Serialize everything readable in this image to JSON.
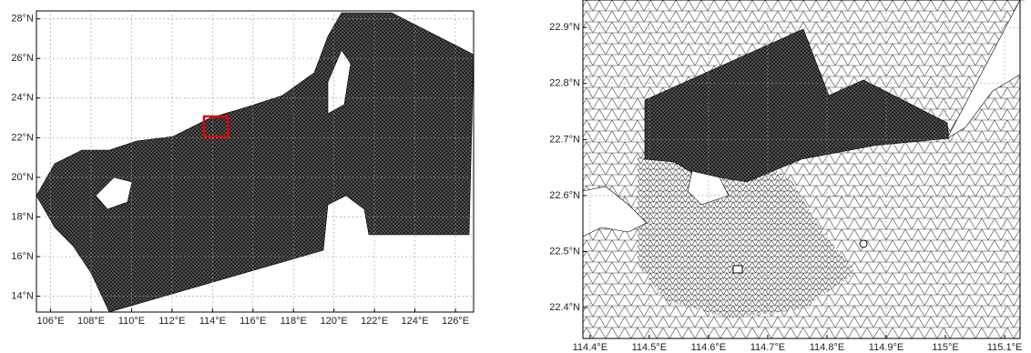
{
  "panels": [
    {
      "xlim": [
        105.3,
        126.9
      ],
      "ylim": [
        13.2,
        28.4
      ],
      "xticks": [
        {
          "value": 106,
          "label": "106°E"
        },
        {
          "value": 108,
          "label": "108°E"
        },
        {
          "value": 110,
          "label": "110°E"
        },
        {
          "value": 112,
          "label": "112°E"
        },
        {
          "value": 114,
          "label": "114°E"
        },
        {
          "value": 116,
          "label": "116°E"
        },
        {
          "value": 118,
          "label": "118°E"
        },
        {
          "value": 120,
          "label": "120°E"
        },
        {
          "value": 122,
          "label": "122°E"
        },
        {
          "value": 124,
          "label": "124°E"
        },
        {
          "value": 126,
          "label": "126°E"
        }
      ],
      "yticks": [
        {
          "value": 14,
          "label": "14°N"
        },
        {
          "value": 16,
          "label": "16°N"
        },
        {
          "value": 18,
          "label": "18°N"
        },
        {
          "value": 20,
          "label": "20°N"
        },
        {
          "value": 22,
          "label": "22°N"
        },
        {
          "value": 24,
          "label": "24°N"
        },
        {
          "value": 26,
          "label": "26°N"
        },
        {
          "value": 28,
          "label": "28°N"
        }
      ]
    },
    {
      "xlim": [
        114.388,
        115.126
      ],
      "ylim": [
        22.345,
        22.949
      ],
      "xticks": [
        {
          "value": 114.4,
          "label": "114.4°E"
        },
        {
          "value": 114.5,
          "label": "114.5°E"
        },
        {
          "value": 114.6,
          "label": "114.6°E"
        },
        {
          "value": 114.7,
          "label": "114.7°E"
        },
        {
          "value": 114.8,
          "label": "114.8°E"
        },
        {
          "value": 114.9,
          "label": "114.9°E"
        },
        {
          "value": 115,
          "label": "115°E"
        },
        {
          "value": 115.1,
          "label": "115.1°E"
        }
      ],
      "yticks": [
        {
          "value": 22.4,
          "label": "22.4°N"
        },
        {
          "value": 22.5,
          "label": "22.5°N"
        },
        {
          "value": 22.6,
          "label": "22.6°N"
        },
        {
          "value": 22.7,
          "label": "22.7°N"
        },
        {
          "value": 22.8,
          "label": "22.8°N"
        },
        {
          "value": 22.9,
          "label": "22.9°N"
        }
      ]
    }
  ]
}
